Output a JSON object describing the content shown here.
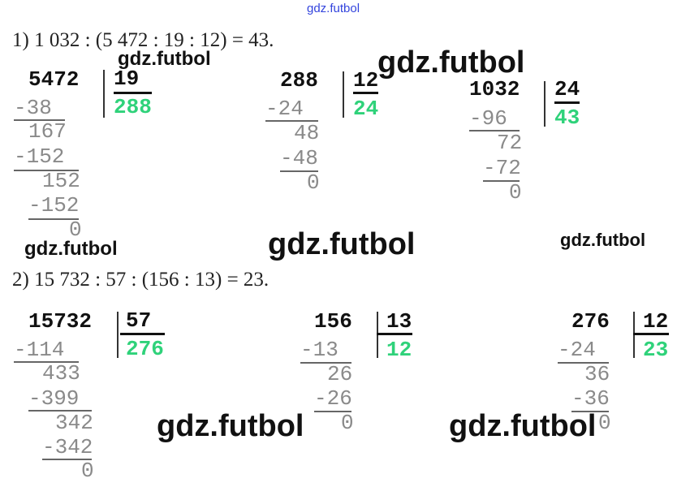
{
  "watermark": "gdz.futbol",
  "watermark_color": "#3344dd",
  "quotient_color": "#2fd27a",
  "equations": [
    "1) 1 032 : (5 472 : 19 : 12) = 43.",
    "2) 15 732 : 57 : (156 : 13) = 23."
  ],
  "divisions": [
    {
      "dividend": "5472",
      "divisor": "19",
      "quotient": "288",
      "steps": [
        "-38",
        "167",
        "-152",
        "152",
        "-152",
        "0"
      ]
    },
    {
      "dividend": "288",
      "divisor": "12",
      "quotient": "24",
      "steps": [
        "-24",
        "48",
        "-48",
        "0"
      ]
    },
    {
      "dividend": "1032",
      "divisor": "24",
      "quotient": "43",
      "steps": [
        "-96",
        "72",
        "-72",
        "0"
      ]
    },
    {
      "dividend": "15732",
      "divisor": "57",
      "quotient": "276",
      "steps": [
        "-114",
        "433",
        "-399",
        "342",
        "-342",
        "0"
      ]
    },
    {
      "dividend": "156",
      "divisor": "13",
      "quotient": "12",
      "steps": [
        "-13",
        "26",
        "-26",
        "0"
      ]
    },
    {
      "dividend": "276",
      "divisor": "12",
      "quotient": "23",
      "steps": [
        "-24",
        "36",
        "-36",
        "0"
      ]
    }
  ]
}
